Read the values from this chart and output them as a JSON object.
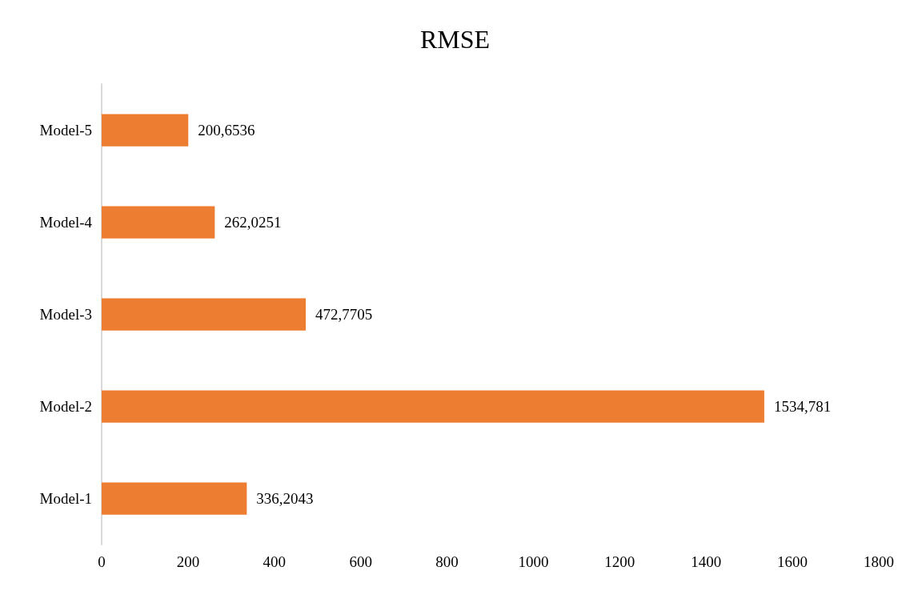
{
  "chart_data": {
    "type": "bar",
    "orientation": "horizontal",
    "title": "RMSE",
    "categories": [
      "Model-5",
      "Model-4",
      "Model-3",
      "Model-2",
      "Model-1"
    ],
    "values": [
      200.6536,
      262.0251,
      472.7705,
      1534.781,
      336.2043
    ],
    "value_labels": [
      "200,6536",
      "262,0251",
      "472,7705",
      "1534,781",
      "336,2043"
    ],
    "color": "#ed7d31",
    "xlim": [
      0,
      1800
    ],
    "xticks": [
      0,
      200,
      400,
      600,
      800,
      1000,
      1200,
      1400,
      1600,
      1800
    ]
  }
}
